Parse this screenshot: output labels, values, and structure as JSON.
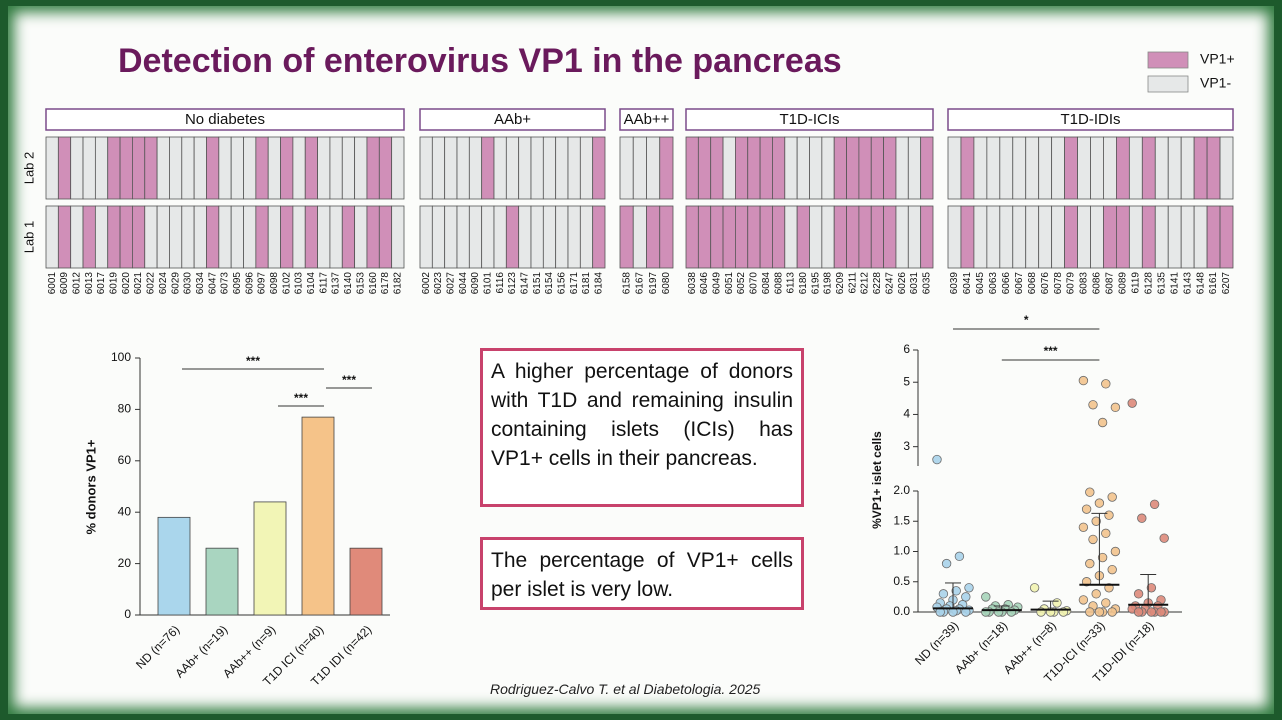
{
  "title": "Detection of enterovirus VP1 in the pancreas",
  "text_boxes": [
    "A higher percentage of donors with T1D and remaining insulin containing islets (ICIs) has VP1+ cells in their pancreas.",
    "The percentage of VP1+ cells per islet is very low."
  ],
  "citation": "Rodriguez-Calvo T. et al Diabetologia. 2025",
  "chart_data": [
    {
      "type": "heatmap",
      "legend": [
        {
          "name": "VP1-",
          "color": "#e6e8e8"
        },
        {
          "name": "VP1+",
          "color": "#d08fb8"
        }
      ],
      "rows": [
        "Lab 2",
        "Lab 1"
      ],
      "groups": [
        {
          "name": "No diabetes",
          "donors": [
            "6001",
            "6009",
            "6012",
            "6013",
            "6017",
            "6019",
            "6020",
            "6021",
            "6022",
            "6024",
            "6029",
            "6030",
            "6034",
            "6047",
            "6073",
            "6095",
            "6096",
            "6097",
            "6098",
            "6102",
            "6103",
            "6104",
            "6117",
            "6137",
            "6140",
            "6153",
            "6160",
            "6178",
            "6182"
          ],
          "status": [
            [
              0,
              1,
              0,
              0,
              0,
              1,
              1,
              1,
              1,
              0,
              0,
              0,
              0,
              1,
              0,
              0,
              0,
              1,
              0,
              1,
              0,
              1,
              0,
              0,
              0,
              0,
              1,
              1,
              0
            ],
            [
              0,
              1,
              0,
              1,
              0,
              1,
              1,
              1,
              0,
              0,
              0,
              0,
              0,
              1,
              0,
              0,
              0,
              1,
              0,
              1,
              0,
              1,
              0,
              0,
              1,
              0,
              1,
              1,
              0
            ]
          ]
        },
        {
          "name": "AAb+",
          "donors": [
            "6002",
            "6023",
            "6027",
            "6044",
            "6090",
            "6101",
            "6116",
            "6123",
            "6147",
            "6151",
            "6154",
            "6156",
            "6171",
            "6181",
            "6184"
          ],
          "status": [
            [
              0,
              0,
              0,
              0,
              0,
              1,
              0,
              0,
              0,
              0,
              0,
              0,
              0,
              0,
              1
            ],
            [
              0,
              0,
              0,
              0,
              0,
              0,
              0,
              1,
              0,
              0,
              0,
              0,
              0,
              0,
              1
            ]
          ]
        },
        {
          "name": "AAb++",
          "donors": [
            "6158",
            "6167",
            "6197",
            "6080"
          ],
          "status": [
            [
              0,
              0,
              0,
              1
            ],
            [
              1,
              0,
              1,
              1
            ]
          ]
        },
        {
          "name": "T1D-ICIs",
          "donors": [
            "6038",
            "6046",
            "6049",
            "6051",
            "6052",
            "6070",
            "6084",
            "6088",
            "6113",
            "6180",
            "6195",
            "6198",
            "6209",
            "6211",
            "6212",
            "6228",
            "6247",
            "6026",
            "6031",
            "6035"
          ],
          "status": [
            [
              1,
              1,
              1,
              0,
              1,
              1,
              1,
              1,
              0,
              0,
              0,
              0,
              1,
              1,
              1,
              1,
              1,
              0,
              0,
              1
            ],
            [
              1,
              1,
              1,
              1,
              1,
              1,
              1,
              1,
              0,
              1,
              0,
              0,
              1,
              1,
              1,
              1,
              1,
              0,
              0,
              1
            ]
          ]
        },
        {
          "name": "T1D-IDIs",
          "donors": [
            "6039",
            "6041",
            "6045",
            "6063",
            "6066",
            "6067",
            "6068",
            "6076",
            "6078",
            "6079",
            "6083",
            "6086",
            "6087",
            "6089",
            "6119",
            "6128",
            "6135",
            "6141",
            "6143",
            "6148",
            "6161",
            "6207"
          ],
          "status": [
            [
              0,
              1,
              0,
              0,
              0,
              0,
              0,
              0,
              0,
              1,
              0,
              0,
              0,
              1,
              0,
              1,
              0,
              0,
              0,
              1,
              1,
              0
            ],
            [
              0,
              1,
              0,
              0,
              0,
              0,
              0,
              0,
              0,
              1,
              0,
              0,
              1,
              1,
              0,
              1,
              0,
              0,
              0,
              0,
              1,
              1
            ]
          ]
        }
      ]
    },
    {
      "type": "bar",
      "ylabel": "% donors VP1+",
      "categories": [
        "ND (n=76)",
        "AAb+ (n=19)",
        "AAb++ (n=9)",
        "T1D ICI (n=40)",
        "T1D IDI (n=42)"
      ],
      "values": [
        38,
        26,
        44,
        77,
        26
      ],
      "colors": [
        "#aad6ec",
        "#a9d5c0",
        "#f2f5b6",
        "#f5c389",
        "#e08a7a"
      ],
      "ylim": [
        0,
        100
      ],
      "yticks": [
        0,
        20,
        40,
        60,
        80,
        100
      ],
      "comparisons": [
        {
          "pair": [
            0,
            3
          ],
          "label": "***"
        },
        {
          "pair": [
            2,
            3
          ],
          "label": "***"
        },
        {
          "pair": [
            3,
            4
          ],
          "label": "***"
        }
      ]
    },
    {
      "type": "dot",
      "ylabel": "%VP1+ islet cells",
      "categories": [
        "ND (n=39)",
        "AAb+ (n=18)",
        "AAb++ (n=8)",
        "T1D-ICI (n=33)",
        "T1D-IDI (n=18)"
      ],
      "colors": [
        "#a9d3ea",
        "#a6d4b9",
        "#f1f3b0",
        "#f2c38d",
        "#dd8a7a"
      ],
      "values": [
        [
          2.6,
          0.92,
          0.8,
          0.4,
          0.35,
          0.3,
          0.25,
          0.2,
          0.15,
          0.12,
          0.1,
          0.08,
          0.05,
          0.05,
          0.03,
          0.02,
          0,
          0,
          0,
          0
        ],
        [
          0.25,
          0.12,
          0.1,
          0.08,
          0.05,
          0.05,
          0.03,
          0,
          0,
          0,
          0,
          0
        ],
        [
          0.4,
          0.15,
          0.05,
          0.02,
          0,
          0,
          0,
          0
        ],
        [
          5.05,
          4.95,
          4.3,
          4.22,
          3.75,
          1.98,
          1.9,
          1.8,
          1.7,
          1.6,
          1.5,
          1.4,
          1.3,
          1.2,
          1,
          0.9,
          0.8,
          0.7,
          0.6,
          0.5,
          0.4,
          0.3,
          0.2,
          0.15,
          0.1,
          0.05,
          0,
          0,
          0,
          0
        ],
        [
          4.35,
          1.78,
          1.55,
          1.22,
          0.4,
          0.3,
          0.2,
          0.15,
          0.1,
          0.1,
          0.05,
          0.05,
          0,
          0,
          0,
          0,
          0,
          0
        ]
      ],
      "means": [
        0.06,
        0.03,
        0.04,
        0.45,
        0.12
      ],
      "sd": [
        0.42,
        0.07,
        0.14,
        1.18,
        0.5
      ],
      "ylim": [
        0,
        6
      ],
      "ybreak": [
        2,
        2.4
      ],
      "yticks": [
        {
          "value": 0,
          "label": "0.0"
        },
        {
          "value": 0.5,
          "label": "0.5"
        },
        {
          "value": 1,
          "label": "1.0"
        },
        {
          "value": 1.5,
          "label": "1.5"
        },
        {
          "value": 2,
          "label": "2.0"
        },
        3,
        4,
        5,
        6
      ],
      "comparisons": [
        {
          "pair": [
            0,
            3
          ],
          "label": "*"
        },
        {
          "pair": [
            1,
            3
          ],
          "label": "***"
        }
      ]
    }
  ]
}
